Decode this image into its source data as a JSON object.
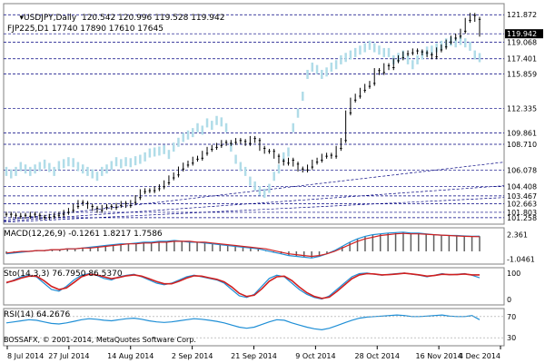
{
  "chart_data": [
    {
      "type": "candlestick",
      "title": "USDJPY,Daily",
      "ohlc_text": "120.542 120.996 119.528 119.942",
      "secondary_label": "FJP225,D1 17740 17890 17610 17645",
      "y_range": [
        100.6,
        123.0
      ],
      "price_levels": [
        121.872,
        119.942,
        119.068,
        117.401,
        115.859,
        112.335,
        109.861,
        108.71,
        106.078,
        104.408,
        103.467,
        102.663,
        101.803,
        101.258
      ],
      "current_price": 119.942,
      "x_tick_labels": [
        "8 Jul 2014",
        "27 Jul 2014",
        "14 Aug 2014",
        "2 Sep 2014",
        "21 Sep 2014",
        "9 Oct 2014",
        "28 Oct 2014",
        "16 Nov 2014",
        "4 Dec 2014"
      ],
      "series": [
        {
          "kind": "usdjpy-candles",
          "values": [
            101.6,
            101.5,
            101.4,
            101.5,
            101.4,
            101.6,
            101.5,
            101.3,
            101.3,
            101.4,
            101.5,
            101.6,
            101.8,
            102.0,
            102.4,
            102.8,
            102.7,
            102.4,
            102.2,
            102.0,
            102.3,
            102.4,
            102.3,
            102.5,
            102.7,
            102.5,
            102.8,
            103.3,
            103.9,
            104.0,
            104.0,
            104.2,
            104.4,
            104.8,
            105.3,
            105.6,
            106.2,
            106.6,
            106.8,
            107.2,
            107.3,
            107.8,
            108.2,
            108.4,
            108.6,
            108.9,
            108.8,
            108.9,
            109.1,
            109.0,
            108.8,
            109.3,
            109.1,
            108.3,
            108.0,
            108.0,
            107.5,
            107.0,
            106.8,
            107.1,
            106.7,
            106.2,
            106.1,
            106.4,
            106.9,
            107.1,
            107.5,
            107.6,
            107.5,
            108.3,
            109.1,
            111.9,
            113.2,
            113.6,
            114.2,
            114.6,
            114.9,
            116.2,
            116.0,
            116.7,
            116.5,
            117.2,
            117.5,
            117.9,
            118.0,
            118.2,
            118.1,
            118.0,
            117.8,
            117.6,
            118.3,
            118.6,
            119.1,
            119.5,
            119.7,
            120.2,
            121.3,
            121.8,
            121.4,
            119.9
          ]
        },
        {
          "kind": "fjp225-overlay",
          "values": [
            15300,
            15250,
            15300,
            15400,
            15350,
            15300,
            15350,
            15400,
            15450,
            15380,
            15300,
            15420,
            15460,
            15500,
            15480,
            15400,
            15350,
            15300,
            15250,
            15200,
            15300,
            15350,
            15420,
            15500,
            15460,
            15500,
            15480,
            15520,
            15550,
            15600,
            15680,
            15700,
            15720,
            15750,
            15650,
            15800,
            15900,
            16000,
            16050,
            16100,
            16200,
            16150,
            16300,
            16250,
            16350,
            16320,
            16200,
            15800,
            15550,
            15400,
            15300,
            15100,
            15000,
            14900,
            14850,
            14950,
            15200,
            15350,
            15600,
            15700,
            16200,
            16500,
            16850,
            17300,
            17450,
            17400,
            17300,
            17350,
            17450,
            17500,
            17600,
            17650,
            17700,
            17750,
            17800,
            17850,
            17900,
            17850,
            17800,
            17750,
            17750,
            17600,
            17650,
            17700,
            17600,
            17500,
            17600,
            17700,
            17780,
            17800,
            17850,
            17900,
            17950,
            17980,
            17950,
            18000,
            17950,
            17880,
            17700,
            17645
          ]
        }
      ],
      "colors": {
        "price_line": "#000000",
        "overlay_line": "#b0dce8",
        "grid": "#000080",
        "trend": "#000080"
      }
    },
    {
      "type": "line",
      "label": "MACD(12,26,9) -0.1261 1.8217 1.7586",
      "y_axis_labels": [
        "2.361",
        "-1.0461"
      ],
      "series": [
        {
          "name": "MACD",
          "values": [
            -0.3,
            -0.2,
            -0.1,
            0.0,
            0.1,
            0.1,
            0.2,
            0.2,
            0.3,
            0.3,
            0.4,
            0.5,
            0.6,
            0.7,
            0.8,
            0.9,
            0.9,
            1.0,
            1.1,
            1.1,
            1.2,
            1.2,
            1.3,
            1.2,
            1.1,
            1.1,
            1.0,
            0.9,
            0.8,
            0.7,
            0.6,
            0.5,
            0.4,
            0.3,
            0.1,
            -0.1,
            -0.3,
            -0.5,
            -0.6,
            -0.7,
            -0.8,
            -0.6,
            -0.3,
            0.1,
            0.6,
            1.1,
            1.5,
            1.8,
            2.0,
            2.1,
            2.2,
            2.25,
            2.3,
            2.2,
            2.2,
            2.1,
            2.0,
            1.95,
            1.9,
            1.9,
            1.85,
            1.8,
            1.82
          ]
        },
        {
          "name": "Signal",
          "values": [
            -0.2,
            -0.1,
            0.0,
            0.0,
            0.1,
            0.1,
            0.2,
            0.2,
            0.3,
            0.3,
            0.4,
            0.4,
            0.5,
            0.6,
            0.7,
            0.8,
            0.9,
            0.9,
            1.0,
            1.0,
            1.1,
            1.1,
            1.2,
            1.2,
            1.2,
            1.1,
            1.1,
            1.0,
            0.9,
            0.8,
            0.7,
            0.6,
            0.5,
            0.4,
            0.3,
            0.1,
            -0.1,
            -0.3,
            -0.4,
            -0.5,
            -0.6,
            -0.5,
            -0.3,
            0.0,
            0.4,
            0.8,
            1.2,
            1.5,
            1.7,
            1.9,
            2.0,
            2.1,
            2.15,
            2.1,
            2.1,
            2.05,
            2.0,
            1.95,
            1.9,
            1.85,
            1.8,
            1.78,
            1.76
          ]
        }
      ]
    },
    {
      "type": "line",
      "label": "Sto(14,3,3) 76.7950 86.5370",
      "y_axis_labels": [
        "100",
        "0"
      ],
      "series": [
        {
          "name": "Main",
          "values": [
            60,
            70,
            80,
            85,
            80,
            60,
            40,
            35,
            50,
            70,
            85,
            90,
            85,
            75,
            70,
            80,
            85,
            88,
            80,
            70,
            60,
            55,
            60,
            70,
            80,
            85,
            80,
            75,
            70,
            60,
            40,
            20,
            15,
            25,
            50,
            75,
            85,
            80,
            60,
            40,
            25,
            15,
            10,
            20,
            40,
            60,
            80,
            90,
            92,
            88,
            85,
            88,
            90,
            92,
            88,
            85,
            80,
            85,
            90,
            86,
            88,
            90,
            85,
            77
          ]
        },
        {
          "name": "Signal",
          "values": [
            62,
            68,
            76,
            82,
            82,
            68,
            50,
            40,
            45,
            62,
            80,
            88,
            86,
            80,
            74,
            78,
            83,
            86,
            82,
            74,
            65,
            58,
            58,
            66,
            76,
            83,
            82,
            77,
            72,
            64,
            48,
            28,
            18,
            22,
            42,
            66,
            80,
            82,
            68,
            48,
            30,
            18,
            12,
            16,
            34,
            54,
            74,
            86,
            90,
            89,
            86,
            87,
            89,
            91,
            89,
            86,
            82,
            84,
            88,
            87,
            87,
            89,
            86,
            86
          ]
        }
      ]
    },
    {
      "type": "line",
      "label": "RSI(14) 64.2676",
      "y_axis_labels": [
        "70",
        "30"
      ],
      "series": [
        {
          "name": "RSI",
          "values": [
            58,
            60,
            62,
            64,
            63,
            60,
            57,
            56,
            58,
            61,
            64,
            66,
            65,
            63,
            62,
            64,
            66,
            67,
            65,
            62,
            60,
            59,
            60,
            62,
            64,
            66,
            65,
            63,
            61,
            58,
            54,
            50,
            48,
            50,
            55,
            60,
            64,
            63,
            58,
            54,
            50,
            47,
            45,
            48,
            53,
            58,
            63,
            67,
            69,
            70,
            71,
            72,
            73,
            72,
            70,
            70,
            71,
            72,
            73,
            71,
            70,
            70,
            72,
            64
          ]
        }
      ],
      "levels": [
        70,
        30
      ]
    }
  ],
  "footer": {
    "copyright": "BOSSAFX, © 2001-2014, MetaQuotes Software Corp."
  }
}
